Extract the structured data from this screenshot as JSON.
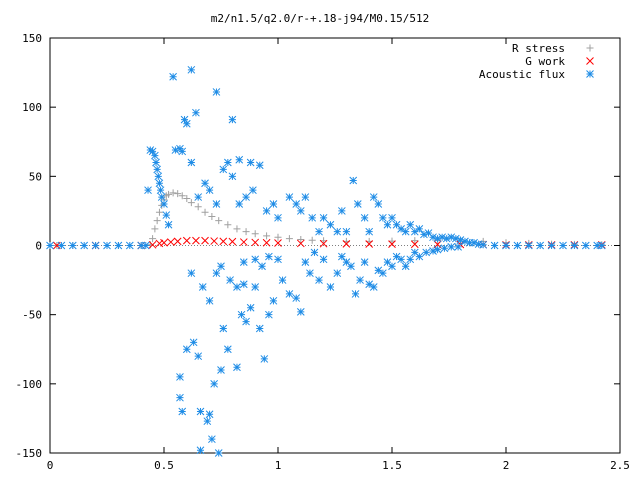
{
  "chart_data": {
    "type": "scatter",
    "title": "m2/n1.5/q2.0/r-+.18-j94/M0.15/512",
    "xlabel": "",
    "ylabel": "",
    "xlim": [
      0,
      2.5
    ],
    "ylim": [
      -150,
      150
    ],
    "x_ticks": [
      0,
      0.5,
      1,
      1.5,
      2,
      2.5
    ],
    "x_tick_labels": [
      "0",
      "0.5",
      "1",
      "1.5",
      "2",
      "2.5"
    ],
    "y_ticks": [
      -150,
      -100,
      -50,
      0,
      50,
      100,
      150
    ],
    "y_tick_labels": [
      "-150",
      "-100",
      "-50",
      "0",
      "50",
      "100",
      "150"
    ],
    "grid": false,
    "legend_position": "top-right",
    "series": [
      {
        "name": "R stress",
        "marker": "plus",
        "color": "#a0a0a0",
        "points": [
          [
            0.03,
            0
          ],
          [
            0.1,
            0
          ],
          [
            0.2,
            0
          ],
          [
            0.3,
            0
          ],
          [
            0.4,
            0
          ],
          [
            0.44,
            0.5
          ],
          [
            0.45,
            5
          ],
          [
            0.46,
            12
          ],
          [
            0.47,
            18
          ],
          [
            0.48,
            24
          ],
          [
            0.49,
            29
          ],
          [
            0.5,
            33
          ],
          [
            0.51,
            36
          ],
          [
            0.52,
            37
          ],
          [
            0.54,
            38
          ],
          [
            0.56,
            37.5
          ],
          [
            0.58,
            36
          ],
          [
            0.6,
            34
          ],
          [
            0.62,
            31
          ],
          [
            0.65,
            28
          ],
          [
            0.68,
            24
          ],
          [
            0.71,
            21
          ],
          [
            0.74,
            18
          ],
          [
            0.78,
            15
          ],
          [
            0.82,
            12
          ],
          [
            0.86,
            10
          ],
          [
            0.9,
            8.5
          ],
          [
            0.95,
            7
          ],
          [
            1.0,
            6
          ],
          [
            1.05,
            5
          ],
          [
            1.1,
            4.3
          ],
          [
            1.15,
            3.8
          ],
          [
            1.2,
            3.4
          ],
          [
            1.3,
            3
          ],
          [
            1.4,
            3
          ],
          [
            1.5,
            3.2
          ],
          [
            1.6,
            3.5
          ],
          [
            1.7,
            3.8
          ],
          [
            1.8,
            4
          ],
          [
            1.9,
            3
          ],
          [
            2.0,
            2
          ],
          [
            2.1,
            1.5
          ],
          [
            2.2,
            1
          ],
          [
            2.3,
            0.8
          ],
          [
            2.42,
            0.5
          ]
        ]
      },
      {
        "name": "G work",
        "marker": "cross",
        "color": "#ff0000",
        "points": [
          [
            0.03,
            0
          ],
          [
            0.2,
            0
          ],
          [
            0.4,
            0
          ],
          [
            0.45,
            0.5
          ],
          [
            0.48,
            1.5
          ],
          [
            0.5,
            2
          ],
          [
            0.53,
            2.5
          ],
          [
            0.56,
            3
          ],
          [
            0.6,
            3.5
          ],
          [
            0.64,
            3.5
          ],
          [
            0.68,
            3.5
          ],
          [
            0.72,
            3.2
          ],
          [
            0.76,
            3
          ],
          [
            0.8,
            2.8
          ],
          [
            0.85,
            2.5
          ],
          [
            0.9,
            2.2
          ],
          [
            0.95,
            2
          ],
          [
            1.0,
            1.8
          ],
          [
            1.1,
            1.5
          ],
          [
            1.2,
            1.3
          ],
          [
            1.3,
            1.2
          ],
          [
            1.4,
            1.1
          ],
          [
            1.5,
            1
          ],
          [
            1.6,
            0.9
          ],
          [
            1.7,
            0.8
          ],
          [
            1.8,
            0.7
          ],
          [
            1.9,
            0.6
          ],
          [
            2.0,
            0.5
          ],
          [
            2.1,
            0.5
          ],
          [
            2.2,
            0.5
          ],
          [
            2.3,
            0.5
          ],
          [
            2.42,
            0.5
          ]
        ]
      },
      {
        "name": "Acoustic flux",
        "marker": "asterisk",
        "color": "#1e8ce6",
        "points": [
          [
            0.0,
            0
          ],
          [
            0.05,
            0
          ],
          [
            0.1,
            0
          ],
          [
            0.15,
            0
          ],
          [
            0.2,
            0
          ],
          [
            0.25,
            0
          ],
          [
            0.3,
            0
          ],
          [
            0.35,
            0
          ],
          [
            0.4,
            0
          ],
          [
            0.42,
            0
          ],
          [
            0.43,
            40
          ],
          [
            0.44,
            69
          ],
          [
            0.45,
            68
          ],
          [
            0.46,
            65
          ],
          [
            0.465,
            60
          ],
          [
            0.47,
            55
          ],
          [
            0.475,
            50
          ],
          [
            0.48,
            45
          ],
          [
            0.485,
            40
          ],
          [
            0.49,
            35
          ],
          [
            0.5,
            30
          ],
          [
            0.51,
            22
          ],
          [
            0.52,
            15
          ],
          [
            0.54,
            122
          ],
          [
            0.55,
            69
          ],
          [
            0.57,
            70
          ],
          [
            0.58,
            68
          ],
          [
            0.57,
            -95
          ],
          [
            0.58,
            -120
          ],
          [
            0.57,
            -110
          ],
          [
            0.59,
            91
          ],
          [
            0.6,
            88
          ],
          [
            0.62,
            127
          ],
          [
            0.64,
            96
          ],
          [
            0.62,
            60
          ],
          [
            0.62,
            -20
          ],
          [
            0.63,
            -70
          ],
          [
            0.6,
            -75
          ],
          [
            0.65,
            -80
          ],
          [
            0.66,
            -120
          ],
          [
            0.66,
            -148
          ],
          [
            0.69,
            -127
          ],
          [
            0.7,
            -122
          ],
          [
            0.71,
            -140
          ],
          [
            0.73,
            111
          ],
          [
            0.74,
            -150
          ],
          [
            0.75,
            -90
          ],
          [
            0.72,
            -100
          ],
          [
            0.76,
            -60
          ],
          [
            0.78,
            -75
          ],
          [
            0.8,
            91
          ],
          [
            0.82,
            -88
          ],
          [
            0.84,
            -50
          ],
          [
            0.86,
            -55
          ],
          [
            0.88,
            -45
          ],
          [
            0.9,
            -30
          ],
          [
            0.92,
            -60
          ],
          [
            0.94,
            -82
          ],
          [
            0.96,
            -50
          ],
          [
            0.98,
            -40
          ],
          [
            0.68,
            45
          ],
          [
            0.7,
            40
          ],
          [
            0.73,
            30
          ],
          [
            0.76,
            55
          ],
          [
            0.78,
            60
          ],
          [
            0.8,
            50
          ],
          [
            0.83,
            30
          ],
          [
            0.86,
            35
          ],
          [
            0.89,
            40
          ],
          [
            0.92,
            58
          ],
          [
            0.95,
            25
          ],
          [
            0.98,
            30
          ],
          [
            1.0,
            20
          ],
          [
            0.85,
            -12
          ],
          [
            0.9,
            -10
          ],
          [
            0.88,
            60
          ],
          [
            0.83,
            62
          ],
          [
            0.65,
            35
          ],
          [
            0.67,
            -30
          ],
          [
            0.7,
            -40
          ],
          [
            0.73,
            -20
          ],
          [
            0.75,
            -15
          ],
          [
            0.79,
            -25
          ],
          [
            0.82,
            -30
          ],
          [
            0.85,
            -28
          ],
          [
            0.93,
            -15
          ],
          [
            0.96,
            -8
          ],
          [
            1.0,
            -10
          ],
          [
            1.02,
            -25
          ],
          [
            1.05,
            -35
          ],
          [
            1.08,
            -38
          ],
          [
            1.1,
            -48
          ],
          [
            1.12,
            -12
          ],
          [
            1.14,
            -20
          ],
          [
            1.16,
            -5
          ],
          [
            1.18,
            -25
          ],
          [
            1.2,
            -10
          ],
          [
            1.23,
            -30
          ],
          [
            1.26,
            -20
          ],
          [
            1.28,
            -8
          ],
          [
            1.3,
            -12
          ],
          [
            1.32,
            -15
          ],
          [
            1.34,
            -35
          ],
          [
            1.36,
            -25
          ],
          [
            1.38,
            -12
          ],
          [
            1.4,
            -28
          ],
          [
            1.42,
            -30
          ],
          [
            1.44,
            -18
          ],
          [
            1.46,
            -20
          ],
          [
            1.48,
            -12
          ],
          [
            1.5,
            -15
          ],
          [
            1.52,
            -8
          ],
          [
            1.54,
            -10
          ],
          [
            1.56,
            -15
          ],
          [
            1.58,
            -10
          ],
          [
            1.6,
            -5
          ],
          [
            1.62,
            -8
          ],
          [
            1.65,
            -5
          ],
          [
            1.68,
            -4
          ],
          [
            1.7,
            -3
          ],
          [
            1.73,
            -2
          ],
          [
            1.76,
            -1
          ],
          [
            1.79,
            -1
          ],
          [
            1.05,
            35
          ],
          [
            1.08,
            30
          ],
          [
            1.1,
            25
          ],
          [
            1.12,
            35
          ],
          [
            1.15,
            20
          ],
          [
            1.18,
            10
          ],
          [
            1.2,
            20
          ],
          [
            1.23,
            15
          ],
          [
            1.26,
            10
          ],
          [
            1.28,
            25
          ],
          [
            1.3,
            10
          ],
          [
            1.33,
            47
          ],
          [
            1.35,
            30
          ],
          [
            1.38,
            20
          ],
          [
            1.4,
            10
          ],
          [
            1.42,
            35
          ],
          [
            1.44,
            30
          ],
          [
            1.46,
            20
          ],
          [
            1.48,
            15
          ],
          [
            1.5,
            20
          ],
          [
            1.52,
            15
          ],
          [
            1.54,
            12
          ],
          [
            1.56,
            10
          ],
          [
            1.58,
            15
          ],
          [
            1.6,
            10
          ],
          [
            1.62,
            12
          ],
          [
            1.64,
            8
          ],
          [
            1.66,
            9
          ],
          [
            1.68,
            6
          ],
          [
            1.7,
            5
          ],
          [
            1.72,
            6
          ],
          [
            1.74,
            5
          ],
          [
            1.76,
            6
          ],
          [
            1.78,
            5
          ],
          [
            1.8,
            4
          ],
          [
            1.82,
            3
          ],
          [
            1.84,
            2
          ],
          [
            1.86,
            2
          ],
          [
            1.88,
            1
          ],
          [
            1.9,
            0.5
          ],
          [
            1.95,
            0
          ],
          [
            2.0,
            0
          ],
          [
            2.05,
            0
          ],
          [
            2.1,
            0
          ],
          [
            2.15,
            0
          ],
          [
            2.2,
            0
          ],
          [
            2.25,
            0
          ],
          [
            2.3,
            0
          ],
          [
            2.35,
            0
          ],
          [
            2.4,
            0
          ],
          [
            2.42,
            0
          ]
        ]
      }
    ]
  }
}
